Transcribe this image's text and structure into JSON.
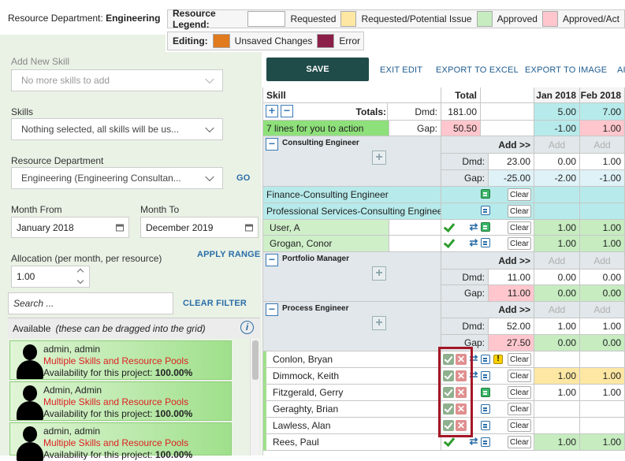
{
  "header": {
    "dept_label": "Resource Department:",
    "dept_value": "Engineering",
    "legend_label": "Resource Legend:",
    "legend_items": [
      {
        "text": "Requested",
        "color": "#ffffff"
      },
      {
        "text": "Requested/Potential Issue",
        "color": "#fde7a3"
      },
      {
        "text": "Approved",
        "color": "#c6ecc0"
      },
      {
        "text": "Approved/Act",
        "color": "#ffc7cd"
      }
    ],
    "editing_label": "Editing:",
    "editing_items": [
      {
        "text": "Unsaved Changes",
        "color": "#e07a1c"
      },
      {
        "text": "Error",
        "color": "#8b1f47"
      }
    ]
  },
  "sidebar": {
    "add_skill_label": "Add New Skill",
    "add_skill_value": "No more skills to add",
    "skills_label": "Skills",
    "skills_value": "Nothing selected, all skills will be us...",
    "dept_label": "Resource Department",
    "dept_value": "Engineering (Engineering Consultan...",
    "go_label": "GO",
    "month_from_label": "Month From",
    "month_from_value": "January 2018",
    "month_to_label": "Month To",
    "month_to_value": "December 2019",
    "allocation_label": "Allocation (per month, per resource)",
    "allocation_value": "1.00",
    "apply_range_label": "APPLY RANGE",
    "search_placeholder": "Search ...",
    "clear_filter_label": "CLEAR FILTER",
    "available_label": "Available",
    "available_note": "(these can be dragged into the grid)",
    "resources": [
      {
        "name": "admin, admin",
        "pools": "Multiple Skills and Resource Pools",
        "avail_label": "Availability for this project:",
        "avail_value": "100.00%"
      },
      {
        "name": "Admin, Admin",
        "pools": "Multiple Skills and Resource Pools",
        "avail_label": "Availability for this project:",
        "avail_value": "100.00%"
      },
      {
        "name": "admin, admin",
        "pools": "Multiple Skills and Resource Pools",
        "avail_label": "Availability for this project:",
        "avail_value": "100.00%"
      }
    ]
  },
  "toolbar": {
    "save": "SAVE",
    "exit_edit": "EXIT EDIT",
    "export_excel": "EXPORT TO EXCEL",
    "export_image": "EXPORT TO IMAGE",
    "more": "AI"
  },
  "grid": {
    "col_skill": "Skill",
    "col_total": "Total",
    "col_jan": "Jan 2018",
    "col_feb": "Feb 2018",
    "totals_label": "Totals:",
    "dmd_label": "Dmd:",
    "gap_label": "Gap:",
    "add_label": "Add >>",
    "add_disabled": "Add",
    "clear_label": "Clear",
    "lines_note": "7 lines for you to action",
    "totals": {
      "dmd": "181.00",
      "gap": "50.50",
      "jan_dmd": "5.00",
      "feb_dmd": "7.00",
      "jan_gap": "-1.00",
      "feb_gap": "1.00"
    },
    "groups": {
      "consulting": {
        "title": "Consulting Engineer",
        "dmd": "23.00",
        "gap": "-25.00",
        "jan_dmd": "0.00",
        "feb_dmd": "1.00",
        "jan_gap": "-2.00",
        "feb_gap": "-1.00"
      },
      "portfolio": {
        "title": "Portfolio Manager",
        "dmd": "11.00",
        "gap": "11.00",
        "jan_dmd": "0.00",
        "feb_dmd": "0.00",
        "jan_gap": "0.00",
        "feb_gap": "0.00"
      },
      "process": {
        "title": "Process Engineer",
        "dmd": "52.00",
        "gap": "27.50",
        "jan_dmd": "1.00",
        "feb_dmd": "1.00",
        "jan_gap": "0.00",
        "feb_gap": "0.00"
      }
    },
    "rows": {
      "finance": "Finance-Consulting Engineer",
      "prof": "Professional Services-Consulting Engineer",
      "user_a": "User, A",
      "grogan": "Grogan, Conor",
      "conlon": "Conlon, Bryan",
      "dimmock": "Dimmock, Keith",
      "fitzgerald": "Fitzgerald, Gerry",
      "geraghty": "Geraghty, Brian",
      "lawless": "Lawless, Alan",
      "rees": "Rees, Paul"
    },
    "vals": {
      "user_a_jan": "1.00",
      "user_a_feb": "1.00",
      "grogan_jan": "1.00",
      "grogan_feb": "1.00",
      "dimmock_jan": "1.00",
      "dimmock_feb": "1.00",
      "fitz_jan": "1.00",
      "fitz_feb": "1.00",
      "rees_jan": "1.00",
      "rees_feb": "1.00"
    }
  }
}
